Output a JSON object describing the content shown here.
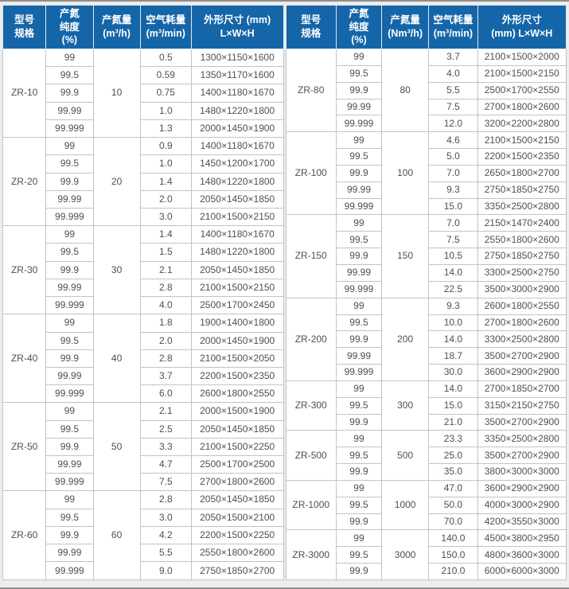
{
  "theme": {
    "header_bg": "#1566a8",
    "header_text": "#ffffff",
    "cell_text": "#4f4f4f",
    "grid_line": "#c3c3c3",
    "page_bg": "#ededed"
  },
  "left_table": {
    "headers": [
      "型号\n规格",
      "产氮\n纯度\n(%)",
      "产氮量\n(m³/h)",
      "空气耗量\n(m³/min)",
      "外形尺寸 (mm)\nL×W×H"
    ],
    "groups": [
      {
        "model": "ZR-10",
        "output": "10",
        "rows": [
          {
            "purity": "99",
            "air": "0.5",
            "dims": "1300×1150×1600"
          },
          {
            "purity": "99.5",
            "air": "0.59",
            "dims": "1350×1170×1600"
          },
          {
            "purity": "99.9",
            "air": "0.75",
            "dims": "1400×1180×1670"
          },
          {
            "purity": "99.99",
            "air": "1.0",
            "dims": "1480×1220×1800"
          },
          {
            "purity": "99.999",
            "air": "1.3",
            "dims": "2000×1450×1900"
          }
        ]
      },
      {
        "model": "ZR-20",
        "output": "20",
        "rows": [
          {
            "purity": "99",
            "air": "0.9",
            "dims": "1400×1180×1670"
          },
          {
            "purity": "99.5",
            "air": "1.0",
            "dims": "1450×1200×1700"
          },
          {
            "purity": "99.9",
            "air": "1.4",
            "dims": "1480×1220×1800"
          },
          {
            "purity": "99.99",
            "air": "2.0",
            "dims": "2050×1450×1850"
          },
          {
            "purity": "99.999",
            "air": "3.0",
            "dims": "2100×1500×2150"
          }
        ]
      },
      {
        "model": "ZR-30",
        "output": "30",
        "rows": [
          {
            "purity": "99",
            "air": "1.4",
            "dims": "1400×1180×1670"
          },
          {
            "purity": "99.5",
            "air": "1.5",
            "dims": "1480×1220×1800"
          },
          {
            "purity": "99.9",
            "air": "2.1",
            "dims": "2050×1450×1850"
          },
          {
            "purity": "99.99",
            "air": "2.8",
            "dims": "2100×1500×2150"
          },
          {
            "purity": "99.999",
            "air": "4.0",
            "dims": "2500×1700×2450"
          }
        ]
      },
      {
        "model": "ZR-40",
        "output": "40",
        "rows": [
          {
            "purity": "99",
            "air": "1.8",
            "dims": "1900×1400×1800"
          },
          {
            "purity": "99.5",
            "air": "2.0",
            "dims": "2000×1450×1900"
          },
          {
            "purity": "99.9",
            "air": "2.8",
            "dims": "2100×1500×2050"
          },
          {
            "purity": "99.99",
            "air": "3.7",
            "dims": "2200×1500×2350"
          },
          {
            "purity": "99.999",
            "air": "6.0",
            "dims": "2600×1800×2550"
          }
        ]
      },
      {
        "model": "ZR-50",
        "output": "50",
        "rows": [
          {
            "purity": "99",
            "air": "2.1",
            "dims": "2000×1500×1900"
          },
          {
            "purity": "99.5",
            "air": "2.5",
            "dims": "2050×1450×1850"
          },
          {
            "purity": "99.9",
            "air": "3.3",
            "dims": "2100×1500×2250"
          },
          {
            "purity": "99.99",
            "air": "4.7",
            "dims": "2500×1700×2500"
          },
          {
            "purity": "99.999",
            "air": "7.5",
            "dims": "2700×1800×2600"
          }
        ]
      },
      {
        "model": "ZR-60",
        "output": "60",
        "rows": [
          {
            "purity": "99",
            "air": "2.8",
            "dims": "2050×1450×1850"
          },
          {
            "purity": "99.5",
            "air": "3.0",
            "dims": "2050×1500×2100"
          },
          {
            "purity": "99.9",
            "air": "4.2",
            "dims": "2200×1500×2250"
          },
          {
            "purity": "99.99",
            "air": "5.5",
            "dims": "2550×1800×2600"
          },
          {
            "purity": "99.999",
            "air": "9.0",
            "dims": "2750×1850×2700"
          }
        ]
      }
    ]
  },
  "right_table": {
    "headers": [
      "型号\n规格",
      "产氮\n纯度\n(%)",
      "产氮量\n(Nm³/h)",
      "空气耗量\n(m³/min)",
      "外形尺寸\n(mm)  L×W×H"
    ],
    "groups": [
      {
        "model": "ZR-80",
        "output": "80",
        "rows": [
          {
            "purity": "99",
            "air": "3.7",
            "dims": "2100×1500×2000"
          },
          {
            "purity": "99.5",
            "air": "4.0",
            "dims": "2100×1500×2150"
          },
          {
            "purity": "99.9",
            "air": "5.5",
            "dims": "2500×1700×2550"
          },
          {
            "purity": "99.99",
            "air": "7.5",
            "dims": "2700×1800×2600"
          },
          {
            "purity": "99.999",
            "air": "12.0",
            "dims": "3200×2200×2800"
          }
        ]
      },
      {
        "model": "ZR-100",
        "output": "100",
        "rows": [
          {
            "purity": "99",
            "air": "4.6",
            "dims": "2100×1500×2150"
          },
          {
            "purity": "99.5",
            "air": "5.0",
            "dims": "2200×1500×2350"
          },
          {
            "purity": "99.9",
            "air": "7.0",
            "dims": "2650×1800×2700"
          },
          {
            "purity": "99.99",
            "air": "9.3",
            "dims": "2750×1850×2750"
          },
          {
            "purity": "99.999",
            "air": "15.0",
            "dims": "3350×2500×2800"
          }
        ]
      },
      {
        "model": "ZR-150",
        "output": "150",
        "rows": [
          {
            "purity": "99",
            "air": "7.0",
            "dims": "2150×1470×2400"
          },
          {
            "purity": "99.5",
            "air": "7.5",
            "dims": "2550×1800×2600"
          },
          {
            "purity": "99.9",
            "air": "10.5",
            "dims": "2750×1850×2750"
          },
          {
            "purity": "99.99",
            "air": "14.0",
            "dims": "3300×2500×2750"
          },
          {
            "purity": "99.999",
            "air": "22.5",
            "dims": "3500×3000×2900"
          }
        ]
      },
      {
        "model": "ZR-200",
        "output": "200",
        "rows": [
          {
            "purity": "99",
            "air": "9.3",
            "dims": "2600×1800×2550"
          },
          {
            "purity": "99.5",
            "air": "10.0",
            "dims": "2700×1800×2600"
          },
          {
            "purity": "99.9",
            "air": "14.0",
            "dims": "3300×2500×2800"
          },
          {
            "purity": "99.99",
            "air": "18.7",
            "dims": "3500×2700×2900"
          },
          {
            "purity": "99.999",
            "air": "30.0",
            "dims": "3600×2900×2900"
          }
        ]
      },
      {
        "model": "ZR-300",
        "output": "300",
        "rows": [
          {
            "purity": "99",
            "air": "14.0",
            "dims": "2700×1850×2700"
          },
          {
            "purity": "99.5",
            "air": "15.0",
            "dims": "3150×2150×2750"
          },
          {
            "purity": "99.9",
            "air": "21.0",
            "dims": "3500×2700×2900"
          }
        ]
      },
      {
        "model": "ZR-500",
        "output": "500",
        "rows": [
          {
            "purity": "99",
            "air": "23.3",
            "dims": "3350×2500×2800"
          },
          {
            "purity": "99.5",
            "air": "25.0",
            "dims": "3500×2700×2900"
          },
          {
            "purity": "99.9",
            "air": "35.0",
            "dims": "3800×3000×3000"
          }
        ]
      },
      {
        "model": "ZR-1000",
        "output": "1000",
        "rows": [
          {
            "purity": "99",
            "air": "47.0",
            "dims": "3600×2900×2900"
          },
          {
            "purity": "99.5",
            "air": "50.0",
            "dims": "4000×3000×2900"
          },
          {
            "purity": "99.9",
            "air": "70.0",
            "dims": "4200×3550×3000"
          }
        ]
      },
      {
        "model": "ZR-3000",
        "output": "3000",
        "rows": [
          {
            "purity": "99",
            "air": "140.0",
            "dims": "4500×3800×2950"
          },
          {
            "purity": "99.5",
            "air": "150.0",
            "dims": "4800×3600×3000"
          },
          {
            "purity": "99.9",
            "air": "210.0",
            "dims": "6000×6000×3000"
          }
        ]
      }
    ]
  }
}
